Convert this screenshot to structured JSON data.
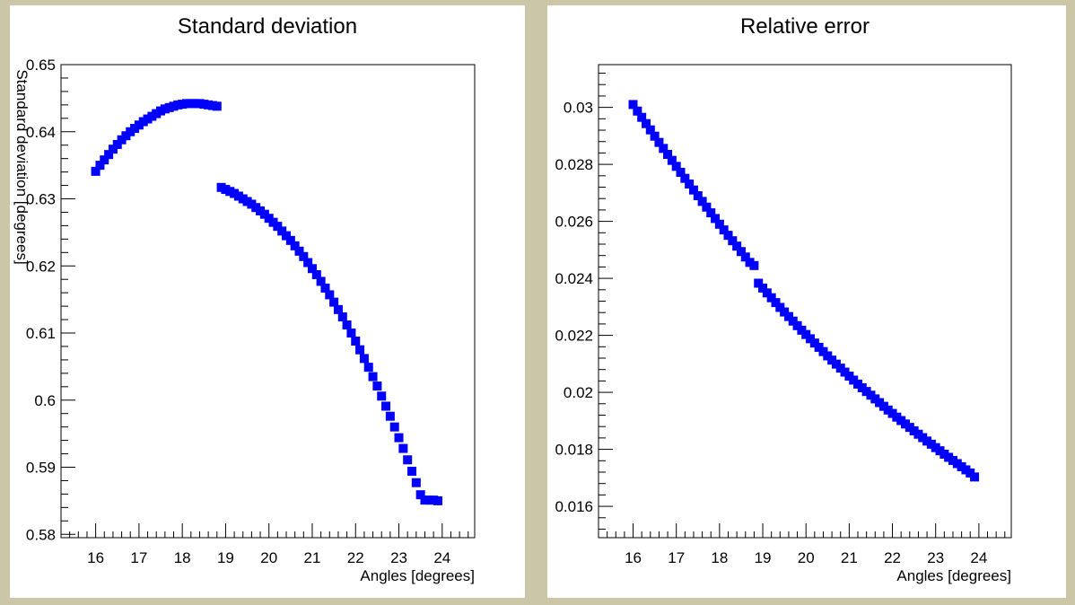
{
  "colors": {
    "background": "#ccc6a8",
    "pad": "#ffffff",
    "marker": "#0000ff",
    "axis": "#000000"
  },
  "chart_data": [
    {
      "type": "scatter",
      "title": "Standard deviation",
      "xlabel": "Angles [degrees]",
      "ylabel": "Standard deviation [degrees]",
      "xlim": [
        15.2,
        24.75
      ],
      "ylim": [
        0.5795,
        0.65
      ],
      "xticks": [
        "16",
        "17",
        "18",
        "19",
        "20",
        "21",
        "22",
        "23",
        "24"
      ],
      "yticks": [
        "0.58",
        "0.59",
        "0.6",
        "0.61",
        "0.62",
        "0.63",
        "0.64",
        "0.65"
      ],
      "grid": false,
      "series": [
        {
          "x": [
            16.0,
            16.1,
            16.2,
            16.3,
            16.4,
            16.5,
            16.6,
            16.7,
            16.8,
            16.9,
            17.0,
            17.1,
            17.2,
            17.3,
            17.4,
            17.5,
            17.6,
            17.7,
            17.8,
            17.9,
            18.0,
            18.1,
            18.2,
            18.3,
            18.4,
            18.5,
            18.6,
            18.7,
            18.8
          ],
          "y": [
            0.6341,
            0.635,
            0.6358,
            0.6366,
            0.6374,
            0.6381,
            0.6388,
            0.6394,
            0.64,
            0.6405,
            0.641,
            0.6415,
            0.6419,
            0.6423,
            0.6427,
            0.6431,
            0.6434,
            0.6436,
            0.6438,
            0.644,
            0.6441,
            0.6442,
            0.6442,
            0.6442,
            0.6442,
            0.6441,
            0.644,
            0.6439,
            0.6438
          ]
        },
        {
          "x": [
            18.9,
            19.0,
            19.1,
            19.2,
            19.3,
            19.4,
            19.5,
            19.6,
            19.7,
            19.8,
            19.9,
            20.0,
            20.1,
            20.2,
            20.3,
            20.4,
            20.5,
            20.6,
            20.7,
            20.8,
            20.9,
            21.0,
            21.1,
            21.2,
            21.3,
            21.4,
            21.5,
            21.6,
            21.7,
            21.8,
            21.9,
            22.0,
            22.1,
            22.2,
            22.3,
            22.4,
            22.5,
            22.6,
            22.7,
            22.8,
            22.9,
            23.0,
            23.1,
            23.2,
            23.3,
            23.4,
            23.5,
            23.6,
            23.7,
            23.8,
            23.9
          ],
          "y": [
            0.6317,
            0.6314,
            0.6311,
            0.6308,
            0.6304,
            0.63,
            0.6296,
            0.6292,
            0.6287,
            0.6282,
            0.6277,
            0.6271,
            0.6265,
            0.6259,
            0.6252,
            0.6245,
            0.6238,
            0.623,
            0.6222,
            0.6214,
            0.6205,
            0.6196,
            0.6187,
            0.6177,
            0.6167,
            0.6157,
            0.6146,
            0.6135,
            0.6124,
            0.6112,
            0.61,
            0.6088,
            0.6075,
            0.6062,
            0.6049,
            0.6035,
            0.6021,
            0.6006,
            0.5991,
            0.5976,
            0.596,
            0.5944,
            0.5928,
            0.5911,
            0.5894,
            0.5877,
            0.5859,
            0.5851,
            0.5851,
            0.5851,
            0.585
          ]
        }
      ]
    },
    {
      "type": "scatter",
      "title": "Relative error",
      "xlabel": "Angles [degrees]",
      "ylabel": "",
      "xlim": [
        15.2,
        24.75
      ],
      "ylim": [
        0.0149,
        0.0315
      ],
      "xticks": [
        "16",
        "17",
        "18",
        "19",
        "20",
        "21",
        "22",
        "23",
        "24"
      ],
      "yticks": [
        "0.016",
        "0.018",
        "0.02",
        "0.022",
        "0.024",
        "0.026",
        "0.028",
        "0.03"
      ],
      "grid": false,
      "series": [
        {
          "x": [
            16.0,
            16.1,
            16.2,
            16.3,
            16.4,
            16.5,
            16.6,
            16.7,
            16.8,
            16.9,
            17.0,
            17.1,
            17.2,
            17.3,
            17.4,
            17.5,
            17.6,
            17.7,
            17.8,
            17.9,
            18.0,
            18.1,
            18.2,
            18.3,
            18.4,
            18.5,
            18.6,
            18.7,
            18.8
          ],
          "y": [
            0.0301,
            0.02987,
            0.02965,
            0.02943,
            0.02921,
            0.02899,
            0.02877,
            0.02856,
            0.02835,
            0.02814,
            0.02793,
            0.02772,
            0.02751,
            0.02731,
            0.0271,
            0.0269,
            0.0267,
            0.0265,
            0.0263,
            0.0261,
            0.0259,
            0.0257,
            0.02551,
            0.02532,
            0.02513,
            0.02494,
            0.02475,
            0.02456,
            0.02445
          ]
        },
        {
          "x": [
            18.9,
            19.0,
            19.1,
            19.2,
            19.3,
            19.4,
            19.5,
            19.6,
            19.7,
            19.8,
            19.9,
            20.0,
            20.1,
            20.2,
            20.3,
            20.4,
            20.5,
            20.6,
            20.7,
            20.8,
            20.9,
            21.0,
            21.1,
            21.2,
            21.3,
            21.4,
            21.5,
            21.6,
            21.7,
            21.8,
            21.9,
            22.0,
            22.1,
            22.2,
            22.3,
            22.4,
            22.5,
            22.6,
            22.7,
            22.8,
            22.9,
            23.0,
            23.1,
            23.2,
            23.3,
            23.4,
            23.5,
            23.6,
            23.7,
            23.8,
            23.9
          ],
          "y": [
            0.02383,
            0.02366,
            0.02349,
            0.02332,
            0.02315,
            0.02298,
            0.02282,
            0.02266,
            0.0225,
            0.02234,
            0.02218,
            0.02203,
            0.02188,
            0.02173,
            0.02158,
            0.02143,
            0.02128,
            0.02113,
            0.02099,
            0.02085,
            0.02071,
            0.02057,
            0.02043,
            0.02029,
            0.02016,
            0.02003,
            0.0199,
            0.01977,
            0.01964,
            0.01951,
            0.01938,
            0.01926,
            0.01913,
            0.01901,
            0.01889,
            0.01877,
            0.01865,
            0.01853,
            0.01841,
            0.01829,
            0.01818,
            0.01806,
            0.01795,
            0.01783,
            0.01772,
            0.01761,
            0.0175,
            0.01739,
            0.01728,
            0.01717,
            0.01703
          ]
        }
      ]
    }
  ]
}
